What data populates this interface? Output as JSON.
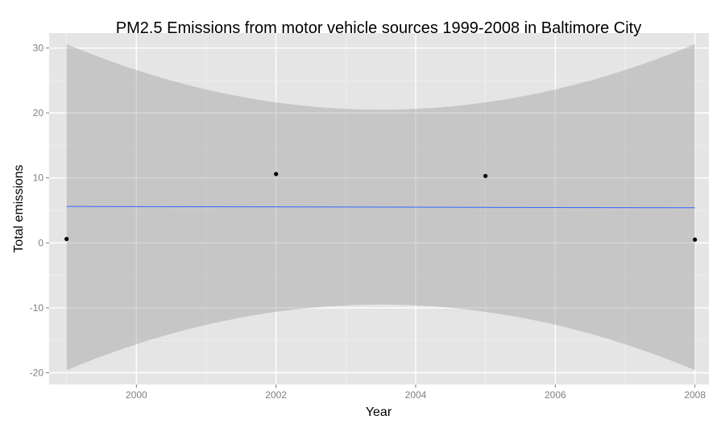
{
  "chart_data": {
    "type": "scatter",
    "title": "PM2.5 Emissions from motor vehicle sources 1999-2008 in Baltimore City",
    "xlabel": "Year",
    "ylabel": "Total emissions",
    "xlim": [
      1998.75,
      2008.2
    ],
    "ylim": [
      -21.8,
      32.3
    ],
    "x_ticks": [
      2000,
      2002,
      2004,
      2006,
      2008
    ],
    "y_ticks": [
      -20,
      -10,
      0,
      10,
      20,
      30
    ],
    "grid": true,
    "series": [
      {
        "kind": "points",
        "x": [
          1999,
          2002,
          2005,
          2008
        ],
        "y": [
          0.6,
          10.6,
          10.3,
          0.5
        ]
      }
    ],
    "fit_line": {
      "method": "linear",
      "x": [
        1999,
        2008
      ],
      "y": [
        5.6,
        5.4
      ],
      "band_lower": [
        -19.6,
        -10.9,
        -9.5,
        -10.9,
        -19.6
      ],
      "band_upper": [
        30.6,
        21.9,
        20.5,
        21.9,
        30.6
      ],
      "band_x": [
        1999,
        2001.25,
        2003.5,
        2005.75,
        2008
      ]
    },
    "colors": {
      "panel_background": "#e5e5e5",
      "grid_major": "#ffffff",
      "grid_minor": "#f2f2f2",
      "points": "#000000",
      "fit_line": "#3366ff",
      "confidence_band": "#999999"
    }
  }
}
